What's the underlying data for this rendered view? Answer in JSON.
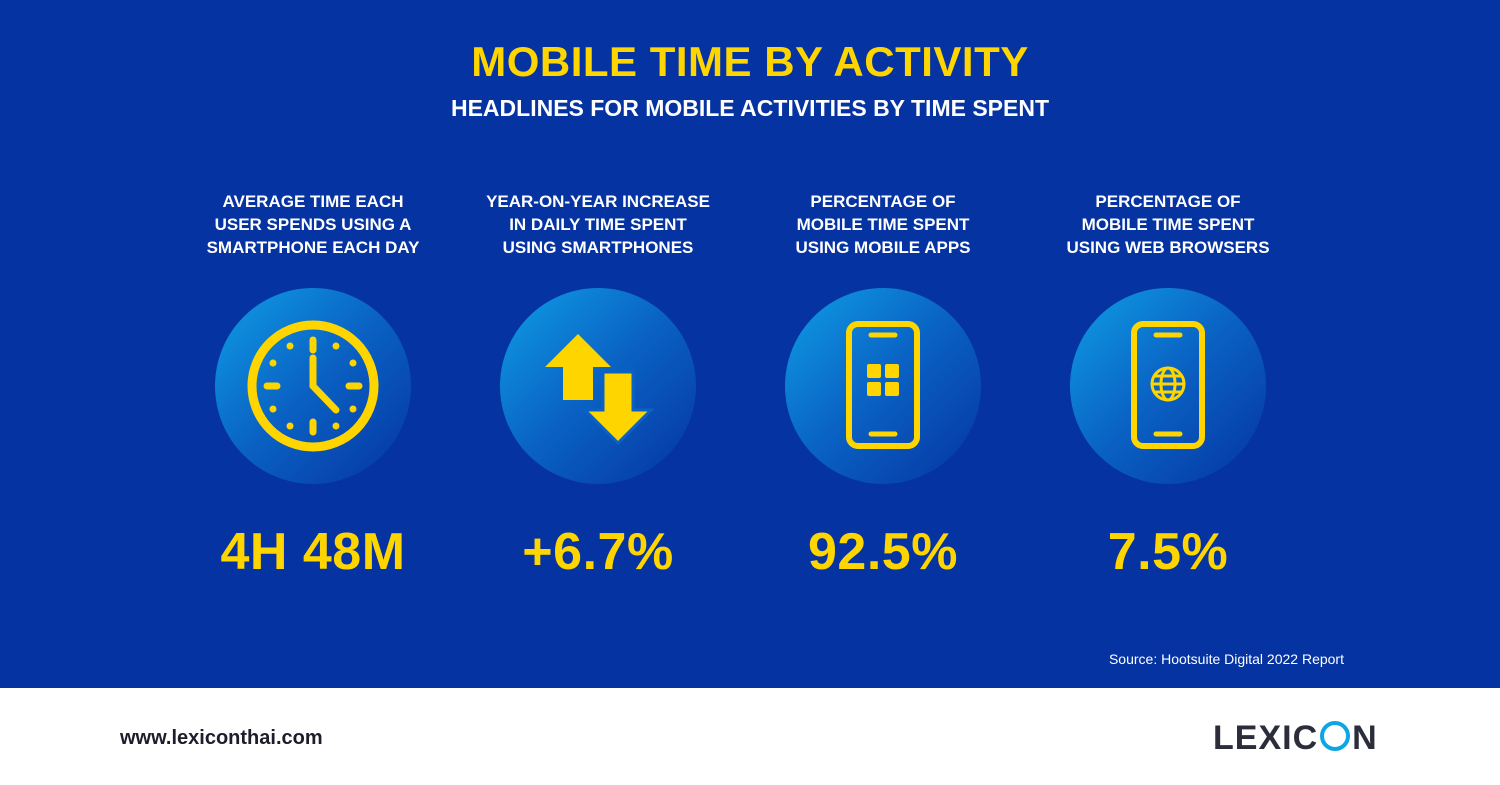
{
  "header": {
    "title": "MOBILE TIME BY ACTIVITY",
    "subtitle": "HEADLINES FOR MOBILE ACTIVITIES BY TIME SPENT"
  },
  "stats": [
    {
      "label_lines": [
        "AVERAGE TIME EACH",
        "USER SPENDS USING A",
        "SMARTPHONE EACH DAY"
      ],
      "icon": "clock-icon",
      "value": "4H 48M"
    },
    {
      "label_lines": [
        "YEAR-ON-YEAR INCREASE",
        "IN DAILY TIME SPENT",
        "USING SMARTPHONES"
      ],
      "icon": "up-down-arrows-icon",
      "value": "+6.7%"
    },
    {
      "label_lines": [
        "PERCENTAGE OF",
        "MOBILE TIME SPENT",
        "USING MOBILE APPS"
      ],
      "icon": "phone-apps-icon",
      "value": "92.5%"
    },
    {
      "label_lines": [
        "PERCENTAGE OF",
        "MOBILE TIME SPENT",
        "USING WEB BROWSERS"
      ],
      "icon": "phone-globe-icon",
      "value": "7.5%"
    }
  ],
  "source": "Source: Hootsuite Digital 2022 Report",
  "footer": {
    "url": "www.lexiconthai.com",
    "logo_text": {
      "prefix": "LEXIC",
      "suffix": "N"
    }
  },
  "colors": {
    "background": "#0533a2",
    "accent": "#ffd500",
    "logo_ring": "#0ea5e6"
  }
}
